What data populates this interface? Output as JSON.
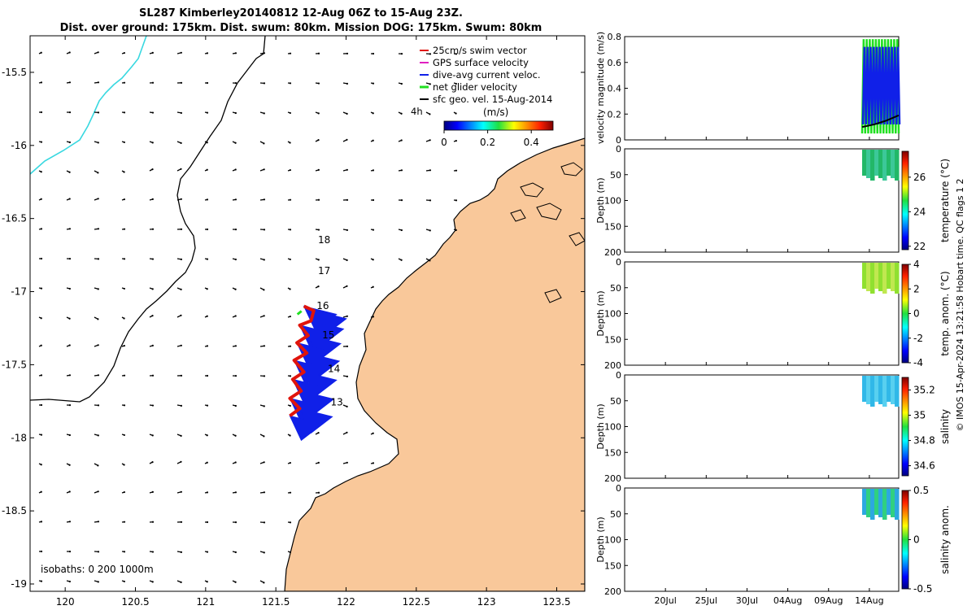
{
  "title": {
    "line1": "SL287 Kimberley20140812 12-Aug 06Z to 15-Aug 23Z.",
    "line2": "Dist. over ground: 175km. Dist. swum: 80km. Mission DOG: 175km. Swum: 80km"
  },
  "colors": {
    "land": "#f9c89a",
    "track": "#e0140c",
    "dive_avg": "#1020e8",
    "net_glider": "#20e020",
    "gps": "#e020c0",
    "cyan_line": "#38d8e0"
  },
  "map": {
    "xlim": [
      119.75,
      123.7
    ],
    "ylim": [
      -19.05,
      -15.25
    ],
    "x_ticks": [
      "120",
      "120.5",
      "121",
      "121.5",
      "122",
      "122.5",
      "123",
      "123.5"
    ],
    "y_ticks": [
      "-15.5",
      "-16",
      "-16.5",
      "-17",
      "-17.5",
      "-18",
      "-18.5",
      "-19"
    ],
    "legend": [
      "25cm/s swim vector",
      "GPS surface velocity",
      "dive-avg current veloc.",
      "net glider velocity",
      "sfc geo. vel. 15-Aug-2014"
    ],
    "legend_time_label": "4h",
    "colorbar": {
      "label": "(m/s)",
      "ticks": [
        "0",
        "0.2",
        "0.4"
      ],
      "range": [
        0,
        0.5
      ]
    },
    "day_labels": [
      {
        "text": "18",
        "lon": 121.8,
        "lat": -16.67
      },
      {
        "text": "17",
        "lon": 121.8,
        "lat": -16.88
      },
      {
        "text": "16",
        "lon": 121.79,
        "lat": -17.12
      },
      {
        "text": "15",
        "lon": 121.83,
        "lat": -17.32
      },
      {
        "text": "14",
        "lon": 121.87,
        "lat": -17.55
      },
      {
        "text": "13",
        "lon": 121.89,
        "lat": -17.78
      }
    ],
    "track": [
      [
        121.7,
        -17.1
      ],
      [
        121.77,
        -17.13
      ],
      [
        121.75,
        -17.2
      ],
      [
        121.67,
        -17.23
      ],
      [
        121.73,
        -17.3
      ],
      [
        121.65,
        -17.35
      ],
      [
        121.72,
        -17.42
      ],
      [
        121.63,
        -17.47
      ],
      [
        121.7,
        -17.55
      ],
      [
        121.62,
        -17.6
      ],
      [
        121.68,
        -17.68
      ],
      [
        121.6,
        -17.73
      ],
      [
        121.67,
        -17.8
      ],
      [
        121.6,
        -17.85
      ]
    ],
    "isobaths_label": "isobaths: 0   200  1000m"
  },
  "panels": {
    "velocity": {
      "ylabel": "velocity magnitude (m/s)",
      "ylim": [
        0,
        0.8
      ],
      "y_ticks": [
        "0",
        "0.2",
        "0.4",
        "0.6",
        "0.8"
      ]
    },
    "temperature": {
      "ylabel": "temperature (°C)",
      "cbar_ticks": [
        "22",
        "24",
        "26"
      ],
      "cbar_range": [
        21.8,
        27.5
      ]
    },
    "temp_anom": {
      "ylabel": "temp. anom. (°C)",
      "cbar_ticks": [
        "-4",
        "-2",
        "0",
        "2",
        "4"
      ],
      "cbar_range": [
        -4,
        4
      ]
    },
    "salinity": {
      "ylabel": "salinity",
      "cbar_ticks": [
        "34.6",
        "34.8",
        "35",
        "35.2"
      ],
      "cbar_range": [
        34.52,
        35.3
      ]
    },
    "sal_anom": {
      "ylabel": "salinity anom.",
      "cbar_ticks": [
        "-0.5",
        "0",
        "0.5"
      ],
      "cbar_range": [
        -0.5,
        0.5
      ]
    },
    "depth_label": "Depth (m)",
    "depth_ticks": [
      "0",
      "50",
      "100",
      "150",
      "200"
    ],
    "time_ticks": [
      "20Jul",
      "25Jul",
      "30Jul",
      "04Aug",
      "09Aug",
      "14Aug"
    ]
  },
  "footer": "© IMOS 15-Apr-2024 13:21:58 Hobart time. QC flags 1  2"
}
